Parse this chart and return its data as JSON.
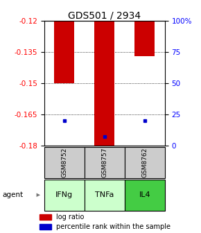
{
  "title": "GDS501 / 2934",
  "samples": [
    "GSM8752",
    "GSM8757",
    "GSM8762"
  ],
  "agents": [
    "IFNg",
    "TNFa",
    "IL4"
  ],
  "log_ratios": [
    -0.15,
    -0.18,
    -0.137
  ],
  "percentile_ranks": [
    20,
    7,
    20
  ],
  "y_min": -0.18,
  "y_max": -0.12,
  "y_ticks_left": [
    -0.12,
    -0.135,
    -0.15,
    -0.165,
    -0.18
  ],
  "y_ticks_right": [
    100,
    75,
    50,
    25,
    0
  ],
  "bar_color": "#cc0000",
  "dot_color": "#0000cc",
  "sample_bg_color": "#cccccc",
  "agent_colors": [
    "#ccffcc",
    "#ccffcc",
    "#44cc44"
  ],
  "bar_width": 0.5,
  "title_fontsize": 10,
  "tick_fontsize": 7.5,
  "label_fontsize": 8
}
